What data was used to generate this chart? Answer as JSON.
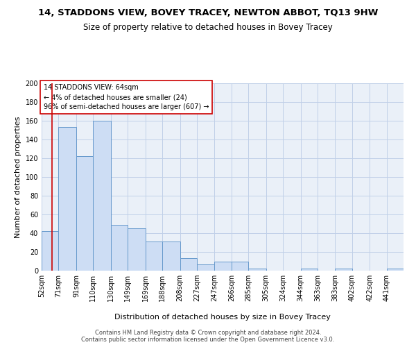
{
  "title": "14, STADDONS VIEW, BOVEY TRACEY, NEWTON ABBOT, TQ13 9HW",
  "subtitle": "Size of property relative to detached houses in Bovey Tracey",
  "xlabel": "Distribution of detached houses by size in Bovey Tracey",
  "ylabel": "Number of detached properties",
  "bin_labels": [
    "52sqm",
    "71sqm",
    "91sqm",
    "110sqm",
    "130sqm",
    "149sqm",
    "169sqm",
    "188sqm",
    "208sqm",
    "227sqm",
    "247sqm",
    "266sqm",
    "285sqm",
    "305sqm",
    "324sqm",
    "344sqm",
    "363sqm",
    "383sqm",
    "402sqm",
    "422sqm",
    "441sqm"
  ],
  "bin_edges": [
    52,
    71,
    91,
    110,
    130,
    149,
    169,
    188,
    208,
    227,
    247,
    266,
    285,
    305,
    324,
    344,
    363,
    383,
    402,
    422,
    441,
    460
  ],
  "bar_heights": [
    42,
    153,
    122,
    160,
    49,
    45,
    31,
    31,
    13,
    7,
    10,
    10,
    2,
    0,
    0,
    2,
    0,
    2,
    0,
    0,
    2
  ],
  "bar_color": "#cdddf4",
  "bar_edgecolor": "#6699cc",
  "grid_color": "#c0d0e8",
  "background_color": "#eaf0f8",
  "property_size": 64,
  "red_line_color": "#cc0000",
  "annotation_text": "14 STADDONS VIEW: 64sqm\n← 4% of detached houses are smaller (24)\n96% of semi-detached houses are larger (607) →",
  "annotation_box_edgecolor": "#cc0000",
  "ylim": [
    0,
    200
  ],
  "yticks": [
    0,
    20,
    40,
    60,
    80,
    100,
    120,
    140,
    160,
    180,
    200
  ],
  "footer_text": "Contains HM Land Registry data © Crown copyright and database right 2024.\nContains public sector information licensed under the Open Government Licence v3.0.",
  "title_fontsize": 9.5,
  "subtitle_fontsize": 8.5,
  "ylabel_fontsize": 8,
  "xlabel_fontsize": 8,
  "tick_fontsize": 7,
  "annotation_fontsize": 7
}
